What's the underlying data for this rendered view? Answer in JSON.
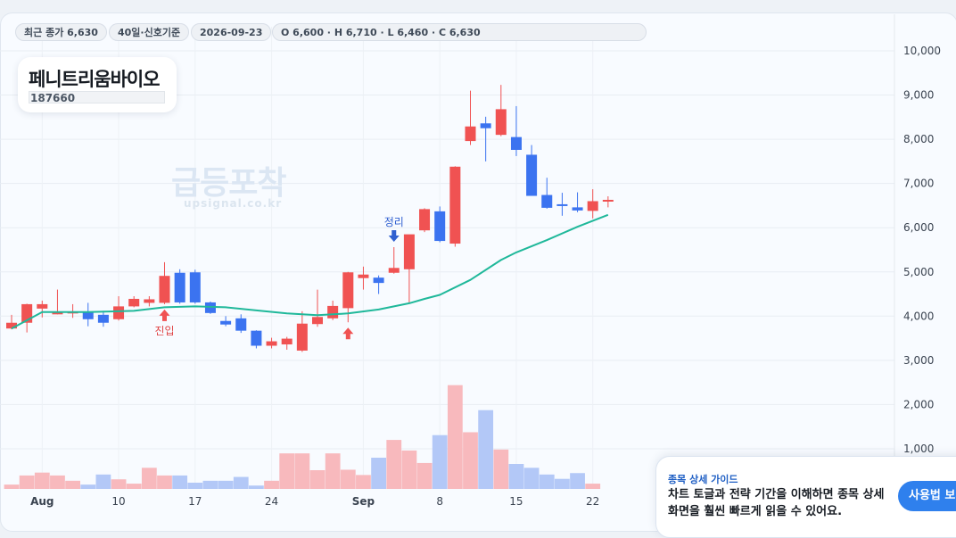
{
  "header": {
    "last_close": "최근 종가 6,630",
    "period": "40일·신호기준",
    "date": "2026-09-23",
    "ohlc": "O 6,600 · H 6,710 · L 6,460 · C 6,630"
  },
  "stock": {
    "name": "페니트리움바이오",
    "code": "187660"
  },
  "watermark": {
    "main": "급등포착",
    "sub": "upsignal.co.kr"
  },
  "guide": {
    "title": "종목 상세 가이드",
    "body": "차트 토글과 전략 기간을 이해하면 종목 상세 화면을 훨씬 빠르게 읽을 수 있어요.",
    "button": "사용법 보기"
  },
  "colors": {
    "up": "#f05252",
    "down": "#3b73f0",
    "ma": "#1fb89a",
    "vol_up": "#f8b9bd",
    "vol_down": "#b3c8f7"
  },
  "chart_data": {
    "type": "candlestick",
    "y_ticks": [
      "10,000",
      "9,000",
      "8,000",
      "7,000",
      "6,000",
      "5,000",
      "4,000",
      "3,000",
      "2,000",
      "1,000"
    ],
    "ylim": [
      0,
      10500
    ],
    "x_ticks": [
      {
        "label": "Aug",
        "index": 2
      },
      {
        "label": "10",
        "index": 7
      },
      {
        "label": "17",
        "index": 12
      },
      {
        "label": "24",
        "index": 17
      },
      {
        "label": "Sep",
        "index": 23
      },
      {
        "label": "8",
        "index": 28
      },
      {
        "label": "15",
        "index": 33
      },
      {
        "label": "22",
        "index": 38
      }
    ],
    "candles": [
      {
        "o": 3720,
        "h": 4030,
        "l": 3700,
        "c": 3850
      },
      {
        "o": 3850,
        "h": 4280,
        "l": 3630,
        "c": 4270
      },
      {
        "o": 4170,
        "h": 4350,
        "l": 3970,
        "c": 4270
      },
      {
        "o": 4060,
        "h": 4600,
        "l": 4040,
        "c": 4080
      },
      {
        "o": 4080,
        "h": 4270,
        "l": 3960,
        "c": 4100
      },
      {
        "o": 4100,
        "h": 4300,
        "l": 3770,
        "c": 3930
      },
      {
        "o": 4030,
        "h": 4120,
        "l": 3760,
        "c": 3850
      },
      {
        "o": 3930,
        "h": 4450,
        "l": 3900,
        "c": 4220
      },
      {
        "o": 4220,
        "h": 4450,
        "l": 4200,
        "c": 4390
      },
      {
        "o": 4300,
        "h": 4450,
        "l": 4220,
        "c": 4380
      },
      {
        "o": 4300,
        "h": 5220,
        "l": 4270,
        "c": 4910
      },
      {
        "o": 4980,
        "h": 5060,
        "l": 4280,
        "c": 4310
      },
      {
        "o": 4990,
        "h": 5050,
        "l": 4280,
        "c": 4310
      },
      {
        "o": 4310,
        "h": 4330,
        "l": 4050,
        "c": 4070
      },
      {
        "o": 3890,
        "h": 4000,
        "l": 3770,
        "c": 3810
      },
      {
        "o": 3950,
        "h": 4040,
        "l": 3620,
        "c": 3670
      },
      {
        "o": 3670,
        "h": 3680,
        "l": 3270,
        "c": 3330
      },
      {
        "o": 3330,
        "h": 3510,
        "l": 3270,
        "c": 3430
      },
      {
        "o": 3360,
        "h": 3530,
        "l": 3240,
        "c": 3490
      },
      {
        "o": 3220,
        "h": 4110,
        "l": 3190,
        "c": 3830
      },
      {
        "o": 3820,
        "h": 4600,
        "l": 3760,
        "c": 3980
      },
      {
        "o": 3950,
        "h": 4350,
        "l": 3910,
        "c": 4230
      },
      {
        "o": 4180,
        "h": 5000,
        "l": 3860,
        "c": 4990
      },
      {
        "o": 4860,
        "h": 5120,
        "l": 4600,
        "c": 4940
      },
      {
        "o": 4870,
        "h": 4920,
        "l": 4500,
        "c": 4750
      },
      {
        "o": 4980,
        "h": 5560,
        "l": 4960,
        "c": 5090
      },
      {
        "o": 5060,
        "h": 5830,
        "l": 4280,
        "c": 5850
      },
      {
        "o": 5940,
        "h": 6440,
        "l": 5900,
        "c": 6420
      },
      {
        "o": 6370,
        "h": 6480,
        "l": 5670,
        "c": 5700
      },
      {
        "o": 5640,
        "h": 7390,
        "l": 5570,
        "c": 7380
      },
      {
        "o": 7960,
        "h": 9100,
        "l": 7870,
        "c": 8290
      },
      {
        "o": 8360,
        "h": 8510,
        "l": 7500,
        "c": 8250
      },
      {
        "o": 8100,
        "h": 9230,
        "l": 8070,
        "c": 8680
      },
      {
        "o": 8050,
        "h": 8750,
        "l": 7620,
        "c": 7760
      },
      {
        "o": 7650,
        "h": 7870,
        "l": 6760,
        "c": 6720
      },
      {
        "o": 6740,
        "h": 7130,
        "l": 6430,
        "c": 6450
      },
      {
        "o": 6530,
        "h": 6790,
        "l": 6270,
        "c": 6520
      },
      {
        "o": 6460,
        "h": 6800,
        "l": 6350,
        "c": 6390
      },
      {
        "o": 6380,
        "h": 6870,
        "l": 6210,
        "c": 6600
      },
      {
        "o": 6600,
        "h": 6710,
        "l": 6460,
        "c": 6630
      }
    ],
    "ma_line": [
      {
        "i": 0,
        "v": 3720
      },
      {
        "i": 2,
        "v": 4090
      },
      {
        "i": 5,
        "v": 4090
      },
      {
        "i": 8,
        "v": 4120
      },
      {
        "i": 10,
        "v": 4200
      },
      {
        "i": 12,
        "v": 4220
      },
      {
        "i": 14,
        "v": 4200
      },
      {
        "i": 16,
        "v": 4130
      },
      {
        "i": 18,
        "v": 4060
      },
      {
        "i": 20,
        "v": 4020
      },
      {
        "i": 22,
        "v": 4060
      },
      {
        "i": 24,
        "v": 4150
      },
      {
        "i": 26,
        "v": 4290
      },
      {
        "i": 27,
        "v": 4390
      },
      {
        "i": 28,
        "v": 4480
      },
      {
        "i": 30,
        "v": 4820
      },
      {
        "i": 32,
        "v": 5270
      },
      {
        "i": 33,
        "v": 5440
      },
      {
        "i": 35,
        "v": 5720
      },
      {
        "i": 37,
        "v": 6020
      },
      {
        "i": 39,
        "v": 6290
      }
    ],
    "volume_max": 2600,
    "volume": [
      90,
      280,
      340,
      280,
      170,
      90,
      300,
      200,
      110,
      440,
      280,
      280,
      130,
      170,
      170,
      250,
      70,
      170,
      740,
      740,
      390,
      740,
      400,
      290,
      650,
      1020,
      800,
      540,
      1120,
      2160,
      1180,
      1640,
      820,
      520,
      440,
      300,
      210,
      330,
      110,
      0
    ],
    "annotations": [
      {
        "index": 10,
        "type": "buy",
        "label": "진입"
      },
      {
        "index": 22,
        "type": "buy",
        "label": ""
      },
      {
        "index": 25,
        "type": "sell",
        "label": "정리"
      }
    ]
  }
}
